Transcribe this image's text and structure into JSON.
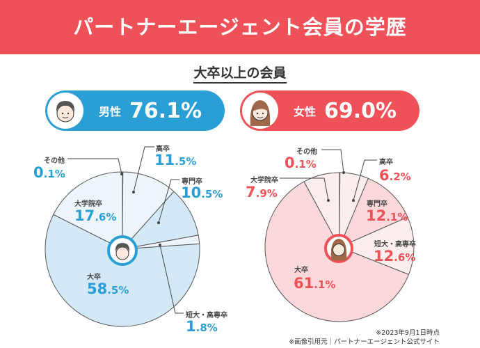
{
  "header": {
    "title": "パートナーエージェント会員の学歴"
  },
  "subtitle": "大卒以上の会員",
  "male": {
    "label": "男性",
    "value": "76.1%",
    "accent": "#2a9fd6"
  },
  "female": {
    "label": "女性",
    "value": "69.0%",
    "accent": "#ef5158"
  },
  "chart_data": [
    {
      "type": "pie",
      "title": "男性",
      "start": "top",
      "direction": "clockwise",
      "colors": [
        "#d3e9f7",
        "#eef6fc"
      ],
      "slices": [
        {
          "label": "その他",
          "value": 0.1
        },
        {
          "label": "高卒",
          "value": 11.5
        },
        {
          "label": "専門卒",
          "value": 10.5
        },
        {
          "label": "短大・高専卒",
          "value": 1.8
        },
        {
          "label": "大卒",
          "value": 58.5
        },
        {
          "label": "大学院卒",
          "value": 17.6
        }
      ]
    },
    {
      "type": "pie",
      "title": "女性",
      "start": "top",
      "direction": "clockwise",
      "colors": [
        "#fbd8da",
        "#fdeeee"
      ],
      "slices": [
        {
          "label": "その他",
          "value": 0.1
        },
        {
          "label": "高卒",
          "value": 6.2
        },
        {
          "label": "専門卒",
          "value": 12.1
        },
        {
          "label": "短大・高専卒",
          "value": 12.6
        },
        {
          "label": "大卒",
          "value": 61.1
        },
        {
          "label": "大学院卒",
          "value": 7.9
        }
      ]
    }
  ],
  "notes": {
    "date": "※2023年9月1日時点",
    "source": "※画像引用元｜パートナーエージェント公式サイト"
  }
}
